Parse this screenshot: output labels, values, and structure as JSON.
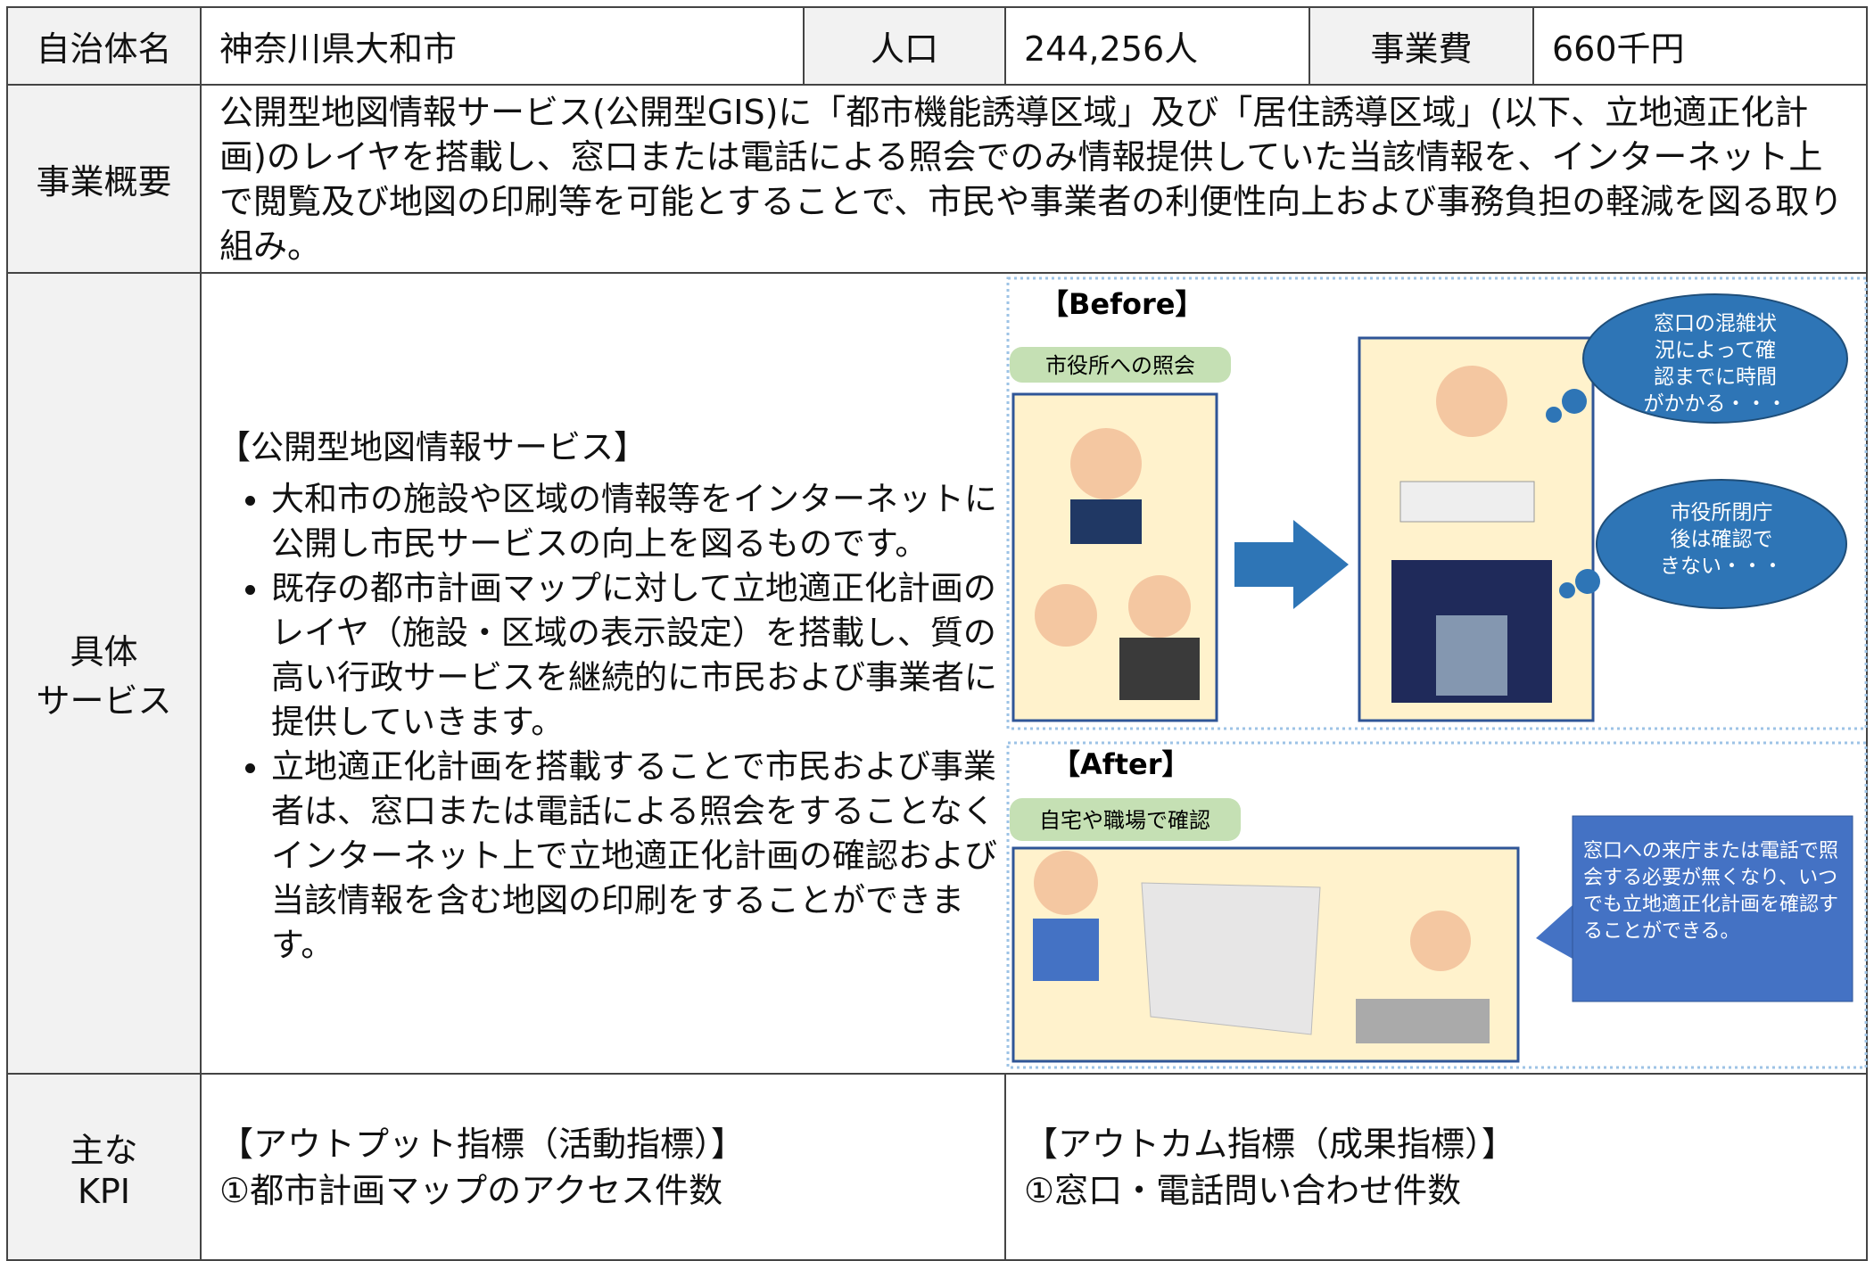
{
  "header": {
    "municipality_label": "自治体名",
    "municipality": "神奈川県大和市",
    "population_label": "人口",
    "population": "244,256人",
    "cost_label": "事業費",
    "cost": "660千円"
  },
  "overview": {
    "label": "事業概要",
    "text": "公開型地図情報サービス(公開型GIS)に「都市機能誘導区域」及び「居住誘導区域」(以下、立地適正化計画)のレイヤを搭載し、窓口または電話による照会でのみ情報提供していた当該情報を、インターネット上で閲覧及び地図の印刷等を可能とすることで、市民や事業者の利便性向上および事務負担の軽減を図る取り組み。"
  },
  "service": {
    "label": "具体\nサービス",
    "heading": "【公開型地図情報サービス】",
    "bullets": [
      "大和市の施設や区域の情報等をインターネットに公開し市民サービスの向上を図るものです。",
      "既存の都市計画マップに対して立地適正化計画のレイヤ（施設・区域の表示設定）を搭載し、質の高い行政サービスを継続的に市民および事業者に提供していきます。",
      "立地適正化計画を搭載することで市民および事業者は、窓口または電話による照会をすることなくインターネット上で立地適正化計画の確認および当該情報を含む地図の印刷をすることができます。"
    ],
    "before": {
      "label": "【Before】",
      "tag": "市役所への照会",
      "bubble1": "窓口の混雑状\n況によって確\n認までに時間\nがかかる・・・",
      "bubble2": "市役所閉庁\n後は確認で\nきない・・・"
    },
    "after": {
      "label": "【After】",
      "tag": "自宅や職場で確認",
      "callout": "窓口への来庁または電話で照会する必要が無くなり、いつでも立地適正化計画を確認することができる。"
    }
  },
  "kpi": {
    "label": "主な\nKPI",
    "output_heading": "【アウトプット指標（活動指標）】",
    "output_item": "①都市計画マップのアクセス件数",
    "outcome_heading": "【アウトカム指標（成果指標）】",
    "outcome_item": "①窓口・電話問い合わせ件数"
  }
}
